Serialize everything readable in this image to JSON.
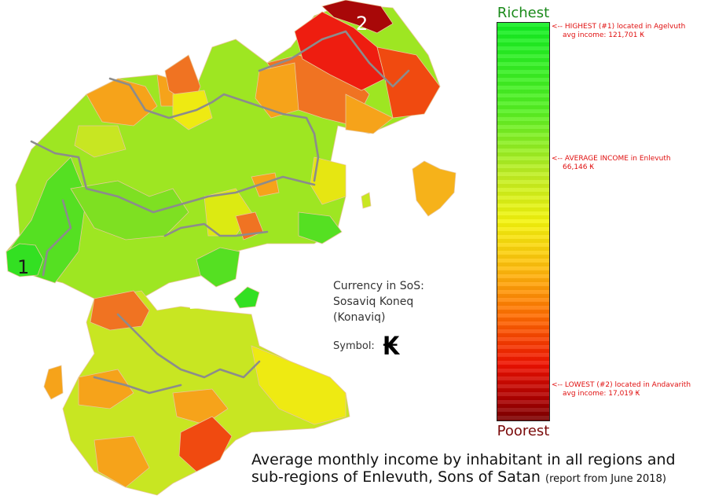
{
  "legend": {
    "top_label": "Richest",
    "bottom_label": "Poorest",
    "gradient_stops": [
      "#11ee22",
      "#55f022",
      "#bfee22",
      "#f4f40c",
      "#ffbb0c",
      "#ff6a00",
      "#ee1100",
      "#aa0000",
      "#7a0000"
    ]
  },
  "annotations": {
    "highest": {
      "line1": "<-- HIGHEST (#1) located in Agelvuth",
      "line2": "avg income: 121,701 ₭"
    },
    "average": {
      "line1": "<-- AVERAGE INCOME in Enlevuth",
      "line2": "66,146 ₭"
    },
    "lowest": {
      "line1": "<-- LOWEST (#2) located in Andavarith",
      "line2": "avg income: 17,019 ₭"
    }
  },
  "map": {
    "markers": [
      {
        "label": "1",
        "rank": "highest"
      },
      {
        "label": "2",
        "rank": "lowest"
      }
    ],
    "colors": {
      "green": "#33e022",
      "lime": "#9ee622",
      "yellow_green": "#c8e622",
      "yellow": "#eeea12",
      "orange": "#f6a31a",
      "dark_orange": "#f07322",
      "red": "#ee1d10",
      "dark_red": "#b50e0e"
    }
  },
  "currency": {
    "line1": "Currency in SoS:",
    "line2": "Sosaviq Koneq",
    "line3": "(Konaviq)",
    "symbol_label": "Symbol:",
    "symbol": "₭"
  },
  "caption": {
    "line1": "Average monthly income by inhabitant in all regions and",
    "line2": "sub-regions of Enlevuth, Sons of Satan",
    "note": "(report from June 2018)"
  }
}
